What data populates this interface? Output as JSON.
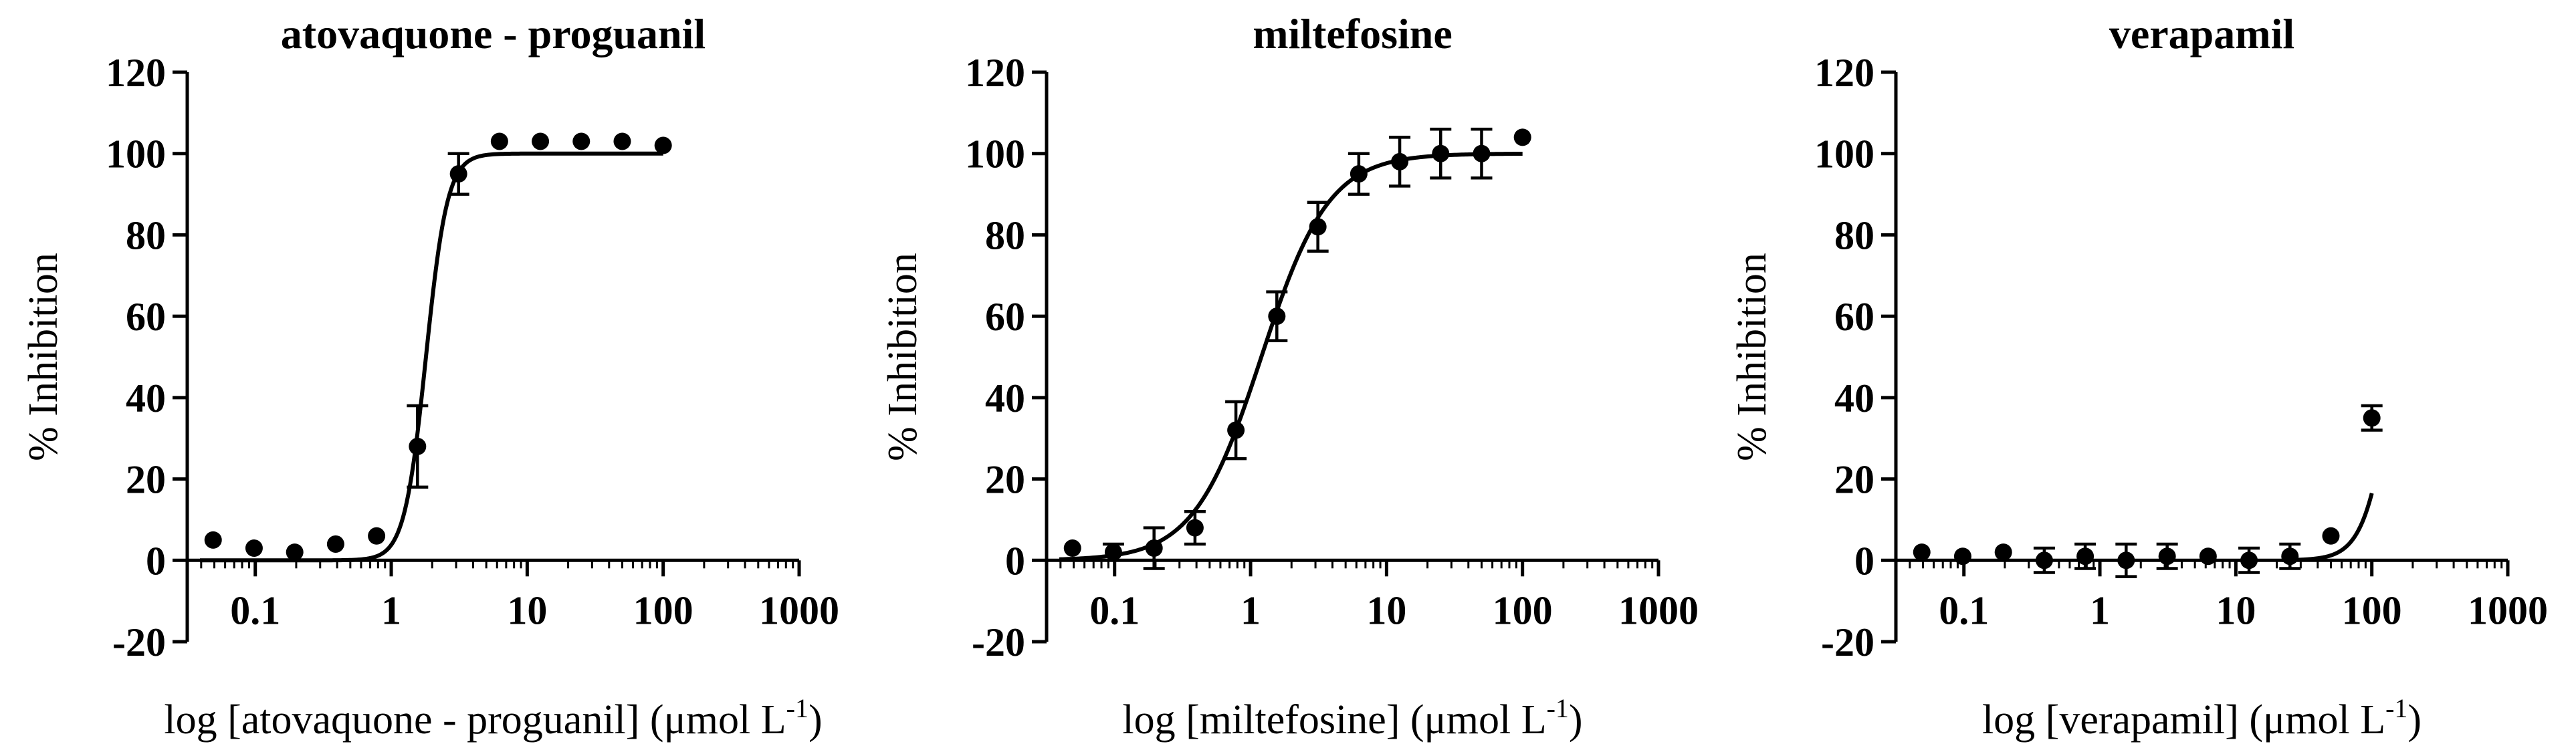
{
  "figure": {
    "panels": [
      {
        "title": "atovaquone - proguanil",
        "ylabel": "% Inhibition",
        "xlabel_main": "log [atovaquone - proguanil] (μmol L",
        "xlabel_sup": "-1",
        "xlabel_end": ")"
      },
      {
        "title": "miltefosine",
        "ylabel": "% Inhibition",
        "xlabel_main": "log [miltefosine] (μmol L",
        "xlabel_sup": "-1",
        "xlabel_end": ")"
      },
      {
        "title": "verapamil",
        "ylabel": "% Inhibition",
        "xlabel_main": "log [verapamil] (μmol L",
        "xlabel_sup": "-1",
        "xlabel_end": ")"
      }
    ]
  },
  "chart_data": [
    {
      "type": "scatter",
      "title": "atovaquone - proguanil",
      "xlabel": "log [atovaquone - proguanil] (μmol L-1)",
      "ylabel": "% Inhibition",
      "xscale": "log",
      "xlim": [
        0.0316,
        1000
      ],
      "ylim": [
        -20,
        120
      ],
      "xticks": [
        0.1,
        1,
        10,
        100,
        1000
      ],
      "xtick_labels": [
        "0.1",
        "1",
        "10",
        "100",
        "1000"
      ],
      "yticks": [
        -20,
        0,
        20,
        40,
        60,
        80,
        100,
        120
      ],
      "ytick_labels": [
        "-20",
        "0",
        "20",
        "40",
        "60",
        "80",
        "100",
        "120"
      ],
      "grid": false,
      "x": [
        0.049,
        0.098,
        0.195,
        0.39,
        0.78,
        1.56,
        3.125,
        6.25,
        12.5,
        25,
        50,
        100
      ],
      "y": [
        5,
        3,
        2,
        4,
        6,
        28,
        95,
        103,
        103,
        103,
        103,
        102
      ],
      "yerr": [
        0,
        0,
        0,
        0,
        0,
        10,
        5,
        0,
        0,
        0,
        0,
        0
      ],
      "fit": {
        "bottom": 0,
        "top": 100,
        "ec50": 1.8,
        "hill": 5.5
      }
    },
    {
      "type": "scatter",
      "title": "miltefosine",
      "xlabel": "log [miltefosine] (μmol L-1)",
      "ylabel": "% Inhibition",
      "xscale": "log",
      "xlim": [
        0.0316,
        1000
      ],
      "ylim": [
        -20,
        120
      ],
      "xticks": [
        0.1,
        1,
        10,
        100,
        1000
      ],
      "xtick_labels": [
        "0.1",
        "1",
        "10",
        "100",
        "1000"
      ],
      "yticks": [
        -20,
        0,
        20,
        40,
        60,
        80,
        100,
        120
      ],
      "ytick_labels": [
        "-20",
        "0",
        "20",
        "40",
        "60",
        "80",
        "100",
        "120"
      ],
      "grid": false,
      "x": [
        0.049,
        0.098,
        0.195,
        0.39,
        0.78,
        1.56,
        3.125,
        6.25,
        12.5,
        25,
        50,
        100
      ],
      "y": [
        3,
        2,
        3,
        8,
        32,
        60,
        82,
        95,
        98,
        100,
        100,
        104
      ],
      "yerr": [
        0,
        2,
        5,
        4,
        7,
        6,
        6,
        5,
        6,
        6,
        6,
        0
      ],
      "fit": {
        "bottom": 0,
        "top": 100,
        "ec50": 1.2,
        "hill": 1.75
      }
    },
    {
      "type": "scatter",
      "title": "verapamil",
      "xlabel": "log [verapamil] (μmol L-1)",
      "ylabel": "% Inhibition",
      "xscale": "log",
      "xlim": [
        0.0316,
        1000
      ],
      "ylim": [
        -20,
        120
      ],
      "xticks": [
        0.1,
        1,
        10,
        100,
        1000
      ],
      "xtick_labels": [
        "0.1",
        "1",
        "10",
        "100",
        "1000"
      ],
      "yticks": [
        -20,
        0,
        20,
        40,
        60,
        80,
        100,
        120
      ],
      "ytick_labels": [
        "-20",
        "0",
        "20",
        "40",
        "60",
        "80",
        "100",
        "120"
      ],
      "grid": false,
      "x": [
        0.049,
        0.098,
        0.195,
        0.39,
        0.78,
        1.56,
        3.125,
        6.25,
        12.5,
        25,
        50,
        100
      ],
      "y": [
        2,
        1,
        2,
        0,
        1,
        0,
        1,
        1,
        0,
        1,
        6,
        35
      ],
      "yerr": [
        0,
        0,
        0,
        3,
        3,
        4,
        3,
        0,
        3,
        3,
        0,
        3
      ],
      "fit": {
        "bottom": 0,
        "top": 100,
        "ec50": 150,
        "hill": 4.0,
        "x_from": 22
      }
    }
  ]
}
